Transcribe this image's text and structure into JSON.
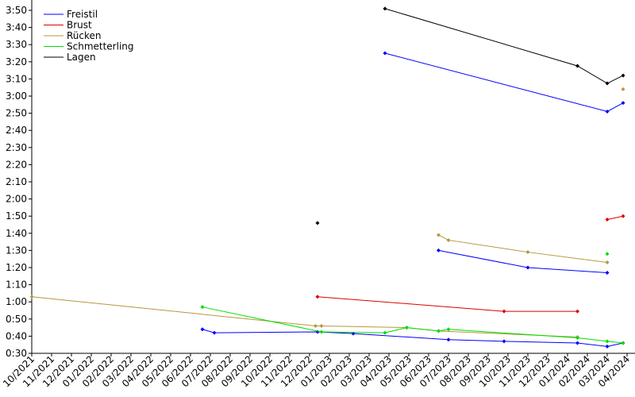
{
  "chart_data": {
    "type": "line",
    "xlim": [
      0,
      30
    ],
    "xticks": [
      {
        "value": 0,
        "label": "10/2021"
      },
      {
        "value": 1,
        "label": "11/2021"
      },
      {
        "value": 2,
        "label": "12/2021"
      },
      {
        "value": 3,
        "label": "01/2022"
      },
      {
        "value": 4,
        "label": "02/2022"
      },
      {
        "value": 5,
        "label": "03/2022"
      },
      {
        "value": 6,
        "label": "04/2022"
      },
      {
        "value": 7,
        "label": "05/2022"
      },
      {
        "value": 8,
        "label": "06/2022"
      },
      {
        "value": 9,
        "label": "07/2022"
      },
      {
        "value": 10,
        "label": "08/2022"
      },
      {
        "value": 11,
        "label": "09/2022"
      },
      {
        "value": 12,
        "label": "10/2022"
      },
      {
        "value": 13,
        "label": "11/2022"
      },
      {
        "value": 14,
        "label": "12/2022"
      },
      {
        "value": 15,
        "label": "01/2023"
      },
      {
        "value": 16,
        "label": "02/2023"
      },
      {
        "value": 17,
        "label": "03/2023"
      },
      {
        "value": 18,
        "label": "04/2023"
      },
      {
        "value": 19,
        "label": "05/2023"
      },
      {
        "value": 20,
        "label": "06/2023"
      },
      {
        "value": 21,
        "label": "07/2023"
      },
      {
        "value": 22,
        "label": "08/2023"
      },
      {
        "value": 23,
        "label": "09/2023"
      },
      {
        "value": 24,
        "label": "10/2023"
      },
      {
        "value": 25,
        "label": "11/2023"
      },
      {
        "value": 26,
        "label": "12/2023"
      },
      {
        "value": 27,
        "label": "01/2024"
      },
      {
        "value": 28,
        "label": "02/2024"
      },
      {
        "value": 29,
        "label": "03/2024"
      },
      {
        "value": 30,
        "label": "04/2024"
      }
    ],
    "ylim": [
      30,
      230
    ],
    "yticks": [
      {
        "value": 30,
        "label": "0:30"
      },
      {
        "value": 40,
        "label": "0:40"
      },
      {
        "value": 50,
        "label": "0:50"
      },
      {
        "value": 60,
        "label": "1:00"
      },
      {
        "value": 70,
        "label": "1:10"
      },
      {
        "value": 80,
        "label": "1:20"
      },
      {
        "value": 90,
        "label": "1:30"
      },
      {
        "value": 100,
        "label": "1:40"
      },
      {
        "value": 110,
        "label": "1:50"
      },
      {
        "value": 120,
        "label": "2:00"
      },
      {
        "value": 130,
        "label": "2:10"
      },
      {
        "value": 140,
        "label": "2:20"
      },
      {
        "value": 150,
        "label": "2:30"
      },
      {
        "value": 160,
        "label": "2:40"
      },
      {
        "value": 170,
        "label": "2:50"
      },
      {
        "value": 180,
        "label": "3:00"
      },
      {
        "value": 190,
        "label": "3:10"
      },
      {
        "value": 200,
        "label": "3:20"
      },
      {
        "value": 210,
        "label": "3:30"
      },
      {
        "value": 220,
        "label": "3:40"
      },
      {
        "value": 230,
        "label": "3:50"
      }
    ],
    "legend": "upper left",
    "series": [
      {
        "name": "Freistil",
        "color": "#0000ff",
        "lines": [
          {
            "x": [
              8.6,
              9.2,
              14.4,
              16.2,
              21.0,
              23.8,
              27.5,
              29.0,
              29.8
            ],
            "values": [
              44,
              42,
              42.5,
              41.5,
              38,
              37,
              36,
              34,
              36
            ]
          },
          {
            "x": [
              17.8,
              29.0,
              29.8
            ],
            "values": [
              205,
              171,
              176
            ]
          },
          {
            "x": [
              20.5,
              25.0,
              29.0
            ],
            "values": [
              90,
              80,
              77
            ]
          }
        ]
      },
      {
        "name": "Brust",
        "color": "#dd0000",
        "lines": [
          {
            "x": [
              14.4,
              23.8,
              27.5
            ],
            "values": [
              63,
              54.5,
              54.5
            ]
          },
          {
            "x": [
              29.0,
              29.8
            ],
            "values": [
              108,
              110
            ]
          }
        ]
      },
      {
        "name": "Rücken",
        "color": "#b8963c",
        "lines": [
          {
            "x": [
              0,
              14.3,
              14.6,
              18.9,
              20.5,
              27.5
            ],
            "values": [
              63,
              46,
              46,
              45,
              43,
              39.5
            ]
          },
          {
            "x": [
              20.5,
              21.0,
              25.0,
              29.0
            ],
            "values": [
              99,
              96,
              89,
              83
            ]
          },
          {
            "x": [
              29.8
            ],
            "values": [
              184
            ]
          }
        ]
      },
      {
        "name": "Schmetterling",
        "color": "#00dd00",
        "lines": [
          {
            "x": [
              8.6,
              14.6,
              17.8,
              18.9,
              20.5,
              21.0,
              27.5,
              29.0,
              29.8
            ],
            "values": [
              57,
              42.5,
              42,
              45,
              43,
              44,
              39,
              37,
              36
            ]
          },
          {
            "x": [
              29.0
            ],
            "values": [
              88
            ]
          }
        ]
      },
      {
        "name": "Lagen",
        "color": "#000000",
        "lines": [
          {
            "x": [
              14.4
            ],
            "values": [
              106
            ]
          },
          {
            "x": [
              17.8,
              27.5,
              29.0,
              29.8
            ],
            "values": [
              231,
              197.6,
              187.4,
              192
            ]
          }
        ]
      }
    ]
  }
}
